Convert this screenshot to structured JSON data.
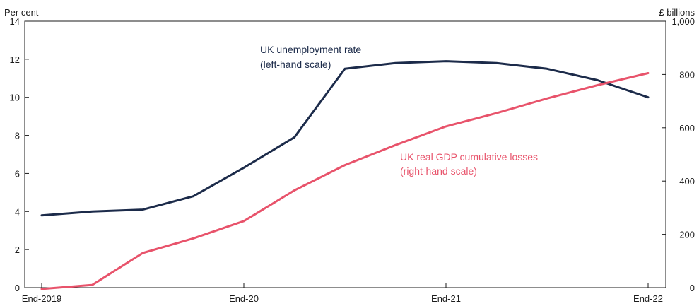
{
  "chart_data": {
    "type": "line",
    "left_axis": {
      "unit_label": "Per cent",
      "ylim": [
        0,
        14
      ],
      "ticks": [
        0,
        2,
        4,
        6,
        8,
        10,
        12,
        14
      ],
      "tick_labels": [
        "0",
        "2",
        "4",
        "6",
        "8",
        "10",
        "12",
        "14"
      ]
    },
    "right_axis": {
      "unit_label": "£ billions",
      "ylim": [
        0,
        1000
      ],
      "ticks": [
        0,
        200,
        400,
        600,
        800,
        1000
      ],
      "tick_labels": [
        "0",
        "200",
        "400",
        "600",
        "800",
        "1,000"
      ]
    },
    "x_axis": {
      "categories": [
        "End-2019",
        "End-20",
        "End-21",
        "End-22"
      ],
      "xlim": [
        0,
        12
      ],
      "ticks": [
        0,
        4,
        8,
        12
      ]
    },
    "series": [
      {
        "name": "UK unemployment rate",
        "annotation": [
          "UK unemployment rate",
          "(left-hand scale)"
        ],
        "axis": "left",
        "color": "#1c2b4a",
        "x": [
          0,
          1,
          2,
          3,
          4,
          5,
          6,
          7,
          8,
          9,
          10,
          11,
          12
        ],
        "values": [
          3.8,
          4.0,
          4.1,
          4.8,
          6.3,
          7.9,
          11.5,
          11.8,
          11.9,
          11.8,
          11.5,
          10.9,
          10.0
        ]
      },
      {
        "name": "UK real GDP cumulative losses",
        "annotation": [
          "UK real GDP cumulative losses",
          "(right-hand scale)"
        ],
        "axis": "right",
        "color": "#e8536b",
        "x": [
          0,
          1,
          2,
          3,
          4,
          5,
          6,
          7,
          8,
          9,
          10,
          11,
          12
        ],
        "values": [
          -5,
          10,
          130,
          185,
          250,
          365,
          460,
          535,
          605,
          655,
          710,
          760,
          805
        ]
      }
    ],
    "grid": false,
    "legend": "inline annotations"
  }
}
